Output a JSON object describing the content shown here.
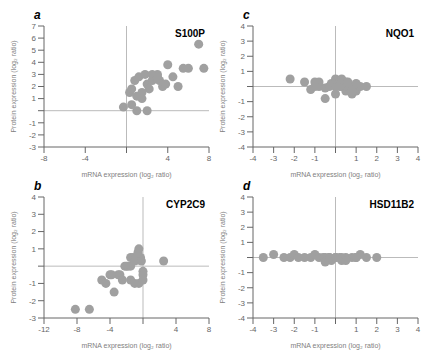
{
  "chart_data": [
    {
      "type": "scatter",
      "title": "S100P",
      "annotations": [
        "a"
      ],
      "xlabel": "mRNA expression (log₂ ratio)",
      "ylabel": "Protein expression (log₂ ratio)",
      "color": "#a0a0a0",
      "grid": false,
      "xlim": [
        -8,
        8
      ],
      "ylim": [
        -3,
        7
      ],
      "xticks": [
        -8,
        -4,
        {
          "value": 0,
          "label": null
        },
        4,
        8
      ],
      "yticks": [
        -3,
        -2,
        -1,
        {
          "value": 0,
          "label": null
        },
        1,
        2,
        3,
        4,
        5,
        6,
        7
      ],
      "x": [
        0.3,
        0.5,
        0.8,
        1.0,
        1.2,
        1.5,
        1.8,
        2.0,
        2.2,
        2.5,
        2.8,
        3.0,
        3.2,
        3.5,
        3.8,
        4.0,
        4.5,
        5.0,
        5.5,
        6.0,
        7.0,
        7.5,
        -0.3,
        0.5,
        1.0,
        2.0,
        1.5,
        2.5,
        3.0
      ],
      "values": [
        1.5,
        1.8,
        2.5,
        1.2,
        2.8,
        1.0,
        3.0,
        2.2,
        1.8,
        2.5,
        2.8,
        3.0,
        2.5,
        2.0,
        2.2,
        3.8,
        2.8,
        2.0,
        3.5,
        3.5,
        5.5,
        3.5,
        0.3,
        0.5,
        0.0,
        0.0,
        1.5,
        3.0,
        2.8
      ]
    },
    {
      "type": "scatter",
      "title": "NQO1",
      "annotations": [
        "c"
      ],
      "xlabel": "mRNA expression (log₂ ratio)",
      "ylabel": "Protein expression (log₂ ratio)",
      "color": "#a0a0a0",
      "grid": false,
      "xlim": [
        -4,
        4
      ],
      "ylim": [
        -4,
        4
      ],
      "xticks": [
        -4,
        -3,
        -2,
        -1,
        {
          "value": 0,
          "label": null
        },
        1,
        2,
        3,
        4
      ],
      "yticks": [
        -4,
        -3,
        -2,
        -1,
        {
          "value": 0,
          "label": null
        },
        1,
        2,
        3,
        4
      ],
      "x": [
        -2.2,
        -1.5,
        -1.2,
        -1.0,
        -0.8,
        -0.5,
        -0.3,
        -0.2,
        0.0,
        0.0,
        0.2,
        0.3,
        0.5,
        0.6,
        0.8,
        1.0,
        1.2,
        1.5,
        -0.8,
        0.0,
        0.2,
        0.5,
        0.8,
        1.0,
        -0.5,
        -1.0,
        0.3,
        0.6,
        0.8
      ],
      "values": [
        0.5,
        0.3,
        -0.2,
        0.0,
        0.0,
        -0.1,
        0.0,
        0.2,
        0.0,
        0.5,
        0.3,
        0.0,
        -0.3,
        0.0,
        -0.5,
        -0.3,
        0.0,
        0.0,
        0.3,
        -0.5,
        0.0,
        0.3,
        0.0,
        0.2,
        -0.8,
        0.3,
        0.5,
        0.3,
        -0.3
      ]
    },
    {
      "type": "scatter",
      "title": "CYP2C9",
      "annotations": [
        "b"
      ],
      "xlabel": "mRNA expression (log₂ ratio)",
      "ylabel": "Protein expression (log₂ ratio)",
      "color": "#a0a0a0",
      "grid": false,
      "xlim": [
        -12,
        8
      ],
      "ylim": [
        -3,
        4
      ],
      "xticks": [
        -12,
        -8,
        -4,
        {
          "value": 0,
          "label": null
        },
        4,
        8
      ],
      "yticks": [
        -3,
        -2,
        -1,
        {
          "value": 0,
          "label": null
        },
        1,
        2,
        3,
        4
      ],
      "x": [
        -8.2,
        -6.5,
        -5.0,
        -4.5,
        -3.5,
        -3.0,
        -2.8,
        -2.5,
        -2.2,
        -2.0,
        -1.8,
        -1.5,
        -1.5,
        -1.2,
        -1.0,
        -0.8,
        -0.6,
        -0.5,
        -0.3,
        -0.2,
        0.0,
        0.0,
        2.5,
        -1.5,
        -1.0,
        -0.5,
        0.0,
        -4.0,
        -3.8
      ],
      "values": [
        -2.5,
        -2.5,
        -0.8,
        -1.0,
        -1.5,
        -0.5,
        -0.5,
        -0.8,
        0.0,
        0.0,
        0.0,
        0.5,
        0.0,
        0.5,
        0.3,
        0.5,
        0.8,
        1.0,
        0.5,
        0.3,
        -0.3,
        -0.5,
        0.3,
        -0.8,
        -1.0,
        -1.0,
        -0.8,
        -0.5,
        -0.5
      ]
    },
    {
      "type": "scatter",
      "title": "HSD11B2",
      "annotations": [
        "d"
      ],
      "xlabel": "mRNA expression (log₂ ratio)",
      "ylabel": "Protein expression (log₂ ratio)",
      "color": "#a0a0a0",
      "grid": false,
      "xlim": [
        -4,
        4
      ],
      "ylim": [
        -4,
        4
      ],
      "xticks": [
        -4,
        -3,
        -2,
        -1,
        {
          "value": 0,
          "label": null
        },
        1,
        2,
        3,
        4
      ],
      "yticks": [
        -4,
        -3,
        -2,
        -1,
        {
          "value": 0,
          "label": null
        },
        1,
        2,
        3,
        4
      ],
      "x": [
        -3.5,
        -3.0,
        -2.5,
        -2.2,
        -2.0,
        -1.8,
        -1.5,
        -1.2,
        -1.0,
        -0.8,
        -0.6,
        -0.5,
        -0.3,
        -0.2,
        0.0,
        0.2,
        0.3,
        0.5,
        0.8,
        1.0,
        1.2,
        1.5,
        2.0,
        -0.5,
        -0.3,
        0.0,
        0.3,
        0.5,
        1.0
      ],
      "values": [
        0.0,
        0.2,
        0.0,
        0.0,
        0.2,
        0.0,
        0.0,
        0.0,
        0.2,
        0.0,
        0.0,
        0.0,
        0.0,
        -0.2,
        0.0,
        0.0,
        -0.2,
        0.0,
        0.0,
        0.0,
        0.2,
        0.0,
        0.0,
        -0.3,
        0.0,
        0.0,
        0.0,
        -0.2,
        0.0
      ]
    }
  ]
}
